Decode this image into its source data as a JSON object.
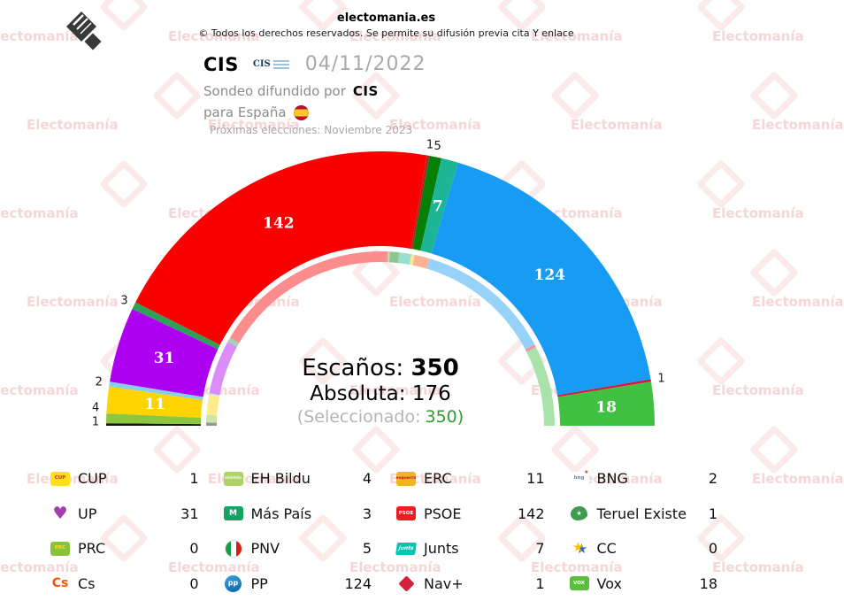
{
  "header": {
    "site": "electomania.es",
    "copyright": "© Todos los derechos reservados. Se permite su difusión previa cita Y enlace"
  },
  "title": {
    "pollster": "CIS",
    "cis_logo_text": "CIS",
    "date": "04/11/2022",
    "sondeo_prefix": "Sondeo difundido por",
    "sondeo_source": "CIS",
    "region_text": "para España",
    "next_election": "Próximas elecciones: Noviembre 2023"
  },
  "center": {
    "escanos_label": "Escaños:",
    "escanos_value": "350",
    "absoluta_label": "Absoluta:",
    "absoluta_value": "176",
    "selected_prefix": "(Seleccionado:",
    "selected_value": "350)"
  },
  "watermark": {
    "text": "Electomanía"
  },
  "chart_data": {
    "type": "parliament-arc",
    "title": "CIS 04/11/2022",
    "total_seats": 350,
    "majority": 176,
    "arc_degrees": 180,
    "legend_position": "bottom-grid-4col",
    "inner_ring": "pastel arc of previous seats (prev field)",
    "parties": [
      {
        "name": "CUP",
        "seats": 1,
        "prev": 2,
        "color": "#141414",
        "icon": {
          "kind": "box",
          "bg": "#ffe01a",
          "fg": "#d42b1e",
          "label": "CUP",
          "name": "cup-logo-icon"
        }
      },
      {
        "name": "EH Bildu",
        "seats": 4,
        "prev": 5,
        "color": "#8dc63f",
        "icon": {
          "kind": "box",
          "bg": "#afd36a",
          "fg": "#f2f7e6",
          "label": "ehbildu",
          "name": "ehbildu-logo-icon"
        }
      },
      {
        "name": "ERC",
        "seats": 11,
        "prev": 13,
        "color": "#ffd400",
        "icon": {
          "kind": "box",
          "bg": "#f3b229",
          "fg": "#c8161d",
          "label": "esquerra",
          "name": "erc-logo-icon"
        }
      },
      {
        "name": "BNG",
        "seats": 2,
        "prev": 1,
        "color": "#87ceeb",
        "icon": {
          "kind": "box",
          "bg": "#ffffff",
          "fg": "#3c8fcc",
          "label": "bng",
          "star": "#d23b33",
          "name": "bng-logo-icon"
        }
      },
      {
        "name": "UP",
        "seats": 31,
        "prev": 35,
        "color": "#ae00f0",
        "icon": {
          "kind": "heart",
          "fg": "#a13dae",
          "name": "up-logo-icon"
        }
      },
      {
        "name": "Más País",
        "seats": 3,
        "prev": 3,
        "color": "#2da05a",
        "icon": {
          "kind": "box",
          "bg": "#15a263",
          "fg": "#ffffff",
          "label": "M",
          "name": "mas-pais-logo-icon"
        }
      },
      {
        "name": "PSOE",
        "seats": 142,
        "prev": 120,
        "color": "#fb0000",
        "icon": {
          "kind": "box",
          "bg": "#ef1c24",
          "fg": "#ffffff",
          "label": "PSOE",
          "name": "psoe-logo-icon"
        }
      },
      {
        "name": "Teruel Existe",
        "seats": 1,
        "prev": 1,
        "color": "#b22222",
        "icon": {
          "kind": "blob",
          "bg": "#3e9b4f",
          "name": "teruel-existe-logo-icon"
        }
      },
      {
        "name": "PRC",
        "seats": 0,
        "prev": 1,
        "color": "#7dbe32",
        "icon": {
          "kind": "box",
          "bg": "#89c33e",
          "fg": "#ffe01a",
          "label": "PRC",
          "name": "prc-logo-icon"
        }
      },
      {
        "name": "PNV",
        "seats": 5,
        "prev": 6,
        "color": "#067f06",
        "icon": {
          "kind": "stripes",
          "stripes": [
            "#169b47",
            "#ffffff",
            "#d32011"
          ],
          "name": "pnv-logo-icon"
        }
      },
      {
        "name": "Junts",
        "seats": 7,
        "prev": 8,
        "color": "#1cb596",
        "icon": {
          "kind": "skew",
          "bg": "#00c5b3",
          "fg": "#ffffff",
          "label": "junts",
          "name": "junts-logo-icon"
        }
      },
      {
        "name": "CC",
        "seats": 0,
        "prev": 2,
        "color": "#ffd100",
        "icon": {
          "kind": "star",
          "colors": [
            "#f5c400",
            "#2f6db5"
          ],
          "name": "cc-logo-icon"
        }
      },
      {
        "name": "Cs",
        "seats": 0,
        "prev": 10,
        "color": "#f2570f",
        "icon": {
          "kind": "text",
          "fg": "#f2570f",
          "label": "Cs",
          "name": "cs-logo-icon"
        }
      },
      {
        "name": "PP",
        "seats": 124,
        "prev": 89,
        "color": "#189bf2",
        "icon": {
          "kind": "circle",
          "bg": "#0b62a8",
          "bg2": "#3ba4e0",
          "fg": "#ffffff",
          "label": "pp",
          "name": "pp-logo-icon"
        }
      },
      {
        "name": "Nav+",
        "seats": 1,
        "prev": 2,
        "color": "#dc143c",
        "icon": {
          "kind": "diamond",
          "bg": "#d5203b",
          "name": "nav-plus-logo-icon"
        }
      },
      {
        "name": "Vox",
        "seats": 18,
        "prev": 52,
        "color": "#41c141",
        "icon": {
          "kind": "box",
          "bg": "#5bbe3c",
          "fg": "#ffffff",
          "label": "VOX",
          "name": "vox-logo-icon"
        }
      }
    ]
  }
}
